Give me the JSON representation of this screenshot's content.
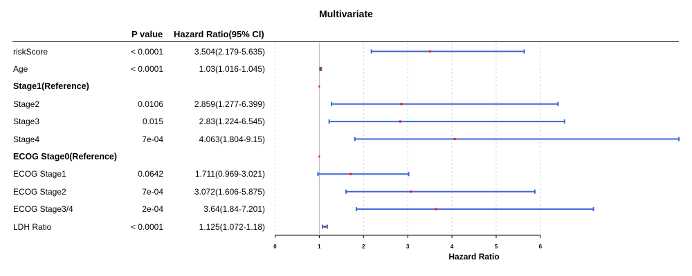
{
  "chart_data": {
    "type": "forest",
    "title": "Multivariate",
    "headers": {
      "p_value": "P value",
      "hazard_ratio": "Hazard Ratio(95% CI)"
    },
    "xlabel": "Hazard Ratio",
    "xlim": [
      0,
      9
    ],
    "xticks": [
      0,
      1,
      2,
      3,
      4,
      5,
      6
    ],
    "reference_line": 1,
    "rows": [
      {
        "label": "riskScore",
        "bold": false,
        "p": "< 0.0001",
        "hr_text": "3.504(2.179-5.635)",
        "hr": 3.504,
        "lo": 2.179,
        "hi": 5.635
      },
      {
        "label": "Age",
        "bold": false,
        "p": "< 0.0001",
        "hr_text": "1.03(1.016-1.045)",
        "hr": 1.03,
        "lo": 1.016,
        "hi": 1.045
      },
      {
        "label": "Stage1(Reference)",
        "bold": true,
        "p": "",
        "hr_text": "",
        "hr": 1,
        "lo": null,
        "hi": null
      },
      {
        "label": "Stage2",
        "bold": false,
        "p": "0.0106",
        "hr_text": "2.859(1.277-6.399)",
        "hr": 2.859,
        "lo": 1.277,
        "hi": 6.399
      },
      {
        "label": "Stage3",
        "bold": false,
        "p": "0.015",
        "hr_text": "2.83(1.224-6.545)",
        "hr": 2.83,
        "lo": 1.224,
        "hi": 6.545
      },
      {
        "label": "Stage4",
        "bold": false,
        "p": "7e-04",
        "hr_text": "4.063(1.804-9.15)",
        "hr": 4.063,
        "lo": 1.804,
        "hi": 9.15
      },
      {
        "label": "ECOG Stage0(Reference)",
        "bold": true,
        "p": "",
        "hr_text": "",
        "hr": 1,
        "lo": null,
        "hi": null
      },
      {
        "label": "ECOG Stage1",
        "bold": false,
        "p": "0.0642",
        "hr_text": "1.711(0.969-3.021)",
        "hr": 1.711,
        "lo": 0.969,
        "hi": 3.021
      },
      {
        "label": "ECOG Stage2",
        "bold": false,
        "p": "7e-04",
        "hr_text": "3.072(1.606-5.875)",
        "hr": 3.072,
        "lo": 1.606,
        "hi": 5.875
      },
      {
        "label": "ECOG Stage3/4",
        "bold": false,
        "p": "2e-04",
        "hr_text": "3.64(1.84-7.201)",
        "hr": 3.64,
        "lo": 1.84,
        "hi": 7.201
      },
      {
        "label": "LDH Ratio",
        "bold": false,
        "p": "< 0.0001",
        "hr_text": "1.125(1.072-1.18)",
        "hr": 1.125,
        "lo": 1.072,
        "hi": 1.18
      }
    ],
    "colors": {
      "ci": "#3a66d8",
      "point": "#e0202a",
      "grid": "#d6d6d6",
      "ref": "#b8b8b8",
      "axis": "#000000"
    }
  }
}
